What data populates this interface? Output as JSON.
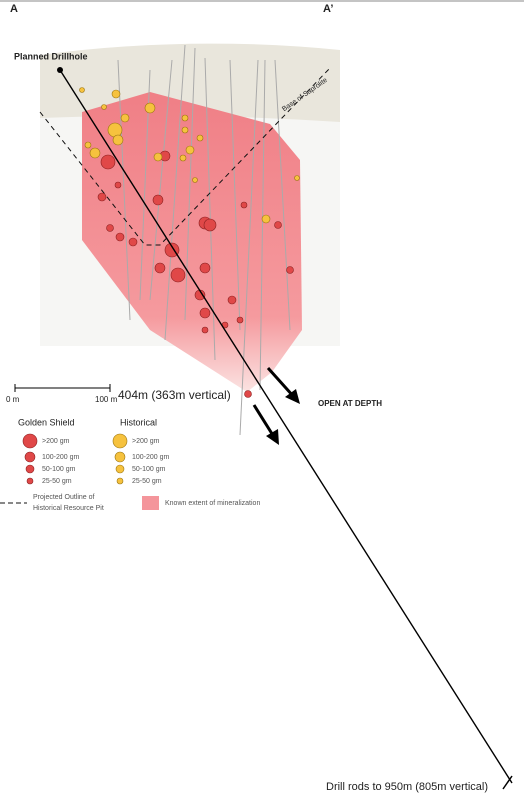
{
  "section": {
    "start_label": "A",
    "end_label": "A’"
  },
  "labels": {
    "drillhole": "Planned Drillhole",
    "saprolite": "Base of Saprolite",
    "intercept": "404m (363m vertical)",
    "open": "OPEN AT DEPTH",
    "end_depth": "Drill rods to 950m (805m vertical)"
  },
  "scale": {
    "start": "0 m",
    "end": "100 m"
  },
  "legend": {
    "golden_shield": {
      "title": "Golden Shield",
      "items": [
        ">200 gm",
        "100-200 gm",
        "50-100 gm",
        "25-50 gm"
      ]
    },
    "historical": {
      "title": "Historical",
      "items": [
        ">200 gm",
        "100-200 gm",
        "50-100 gm",
        "25-50 gm"
      ]
    },
    "pit_outline": [
      "Projected Outline of",
      "Historical Resource Pit"
    ],
    "mineralization": "Known extent of mineralization"
  }
}
